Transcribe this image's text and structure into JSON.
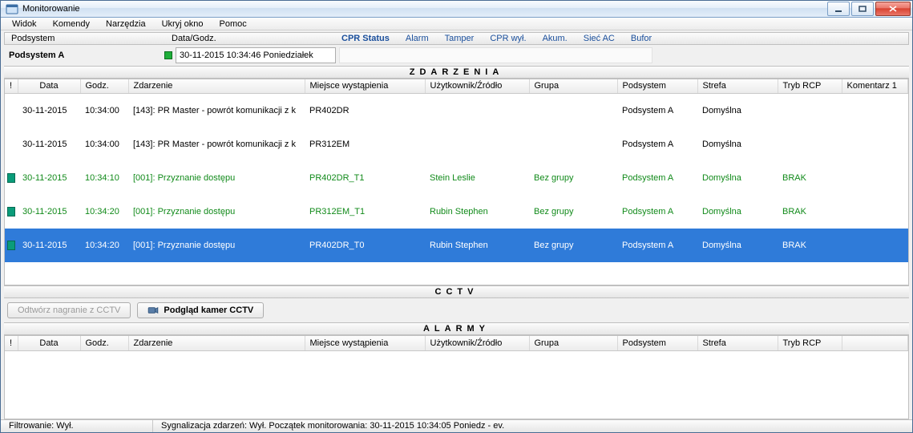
{
  "window": {
    "title": "Monitorowanie"
  },
  "menu": [
    "Widok",
    "Komendy",
    "Narzędzia",
    "Ukryj okno",
    "Pomoc"
  ],
  "statusHeaders": {
    "podsystem": "Podsystem",
    "datagodz": "Data/Godz.",
    "cprStatus": "CPR Status",
    "alarm": "Alarm",
    "tamper": "Tamper",
    "cprWyl": "CPR wył.",
    "akum": "Akum.",
    "siecAC": "Sieć AC",
    "bufor": "Bufor"
  },
  "statusValue": {
    "podsystem": "Podsystem A",
    "date": "30-11-2015",
    "time": "10:34:46",
    "day": "Poniedziałek"
  },
  "sections": {
    "zdarzenia": "ZDARZENIA",
    "cctv": "CCTV",
    "alarmy": "ALARMY"
  },
  "eventColumns": {
    "bang": "!",
    "data": "Data",
    "godz": "Godz.",
    "zdarzenie": "Zdarzenie",
    "miejsce": "Miejsce wystąpienia",
    "uzytk": "Użytkownik/Źródło",
    "grupa": "Grupa",
    "podsystem": "Podsystem",
    "strefa": "Strefa",
    "tryb": "Tryb RCP",
    "komentarz": "Komentarz 1"
  },
  "events": [
    {
      "icon": "",
      "row": "plain",
      "data": "30-11-2015",
      "godz": "10:34:00",
      "zdarzenie": "[143]: PR Master - powrót komunikacji z k",
      "miejsce": "PR402DR",
      "uzytk": "",
      "grupa": "",
      "podsystem": "Podsystem A",
      "strefa": "Domyślna",
      "tryb": "",
      "komentarz": ""
    },
    {
      "icon": "",
      "row": "plain",
      "data": "30-11-2015",
      "godz": "10:34:00",
      "zdarzenie": "[143]: PR Master - powrót komunikacji z k",
      "miejsce": "PR312EM",
      "uzytk": "",
      "grupa": "",
      "podsystem": "Podsystem A",
      "strefa": "Domyślna",
      "tryb": "",
      "komentarz": ""
    },
    {
      "icon": "door",
      "row": "green",
      "data": "30-11-2015",
      "godz": "10:34:10",
      "zdarzenie": "[001]: Przyznanie dostępu",
      "miejsce": "PR402DR_T1",
      "uzytk": "Stein Leslie",
      "grupa": "Bez grupy",
      "podsystem": "Podsystem A",
      "strefa": "Domyślna",
      "tryb": "BRAK",
      "komentarz": ""
    },
    {
      "icon": "door",
      "row": "green",
      "data": "30-11-2015",
      "godz": "10:34:20",
      "zdarzenie": "[001]: Przyznanie dostępu",
      "miejsce": "PR312EM_T1",
      "uzytk": "Rubin Stephen",
      "grupa": "Bez grupy",
      "podsystem": "Podsystem A",
      "strefa": "Domyślna",
      "tryb": "BRAK",
      "komentarz": ""
    },
    {
      "icon": "door",
      "row": "sel",
      "data": "30-11-2015",
      "godz": "10:34:20",
      "zdarzenie": "[001]: Przyznanie dostępu",
      "miejsce": "PR402DR_T0",
      "uzytk": "Rubin Stephen",
      "grupa": "Bez grupy",
      "podsystem": "Podsystem A",
      "strefa": "Domyślna",
      "tryb": "BRAK",
      "komentarz": ""
    }
  ],
  "cctvButtons": {
    "playback": "Odtwórz nagranie z CCTV",
    "preview": "Podgląd kamer CCTV"
  },
  "footer": {
    "filtering": "Filtrowanie: Wył.",
    "signaling": "Sygnalizacja zdarzeń: Wył. Początek monitorowania: 30-11-2015   10:34:05   Poniedz - ev."
  },
  "colors": {
    "accentBlue": "#1a4f9c",
    "rowGreen": "#118a1a",
    "rowSelected": "#2f7bd9",
    "led": "#1fae3a",
    "closeBtn": "#d8402e"
  },
  "columnWidths": {
    "bang": 16,
    "data": 78,
    "godz": 60,
    "zdarzenie": 220,
    "miejsce": 150,
    "uzytk": 130,
    "grupa": 110,
    "podsystem": 100,
    "strefa": 100,
    "tryb": 80,
    "komentarz": 80
  }
}
